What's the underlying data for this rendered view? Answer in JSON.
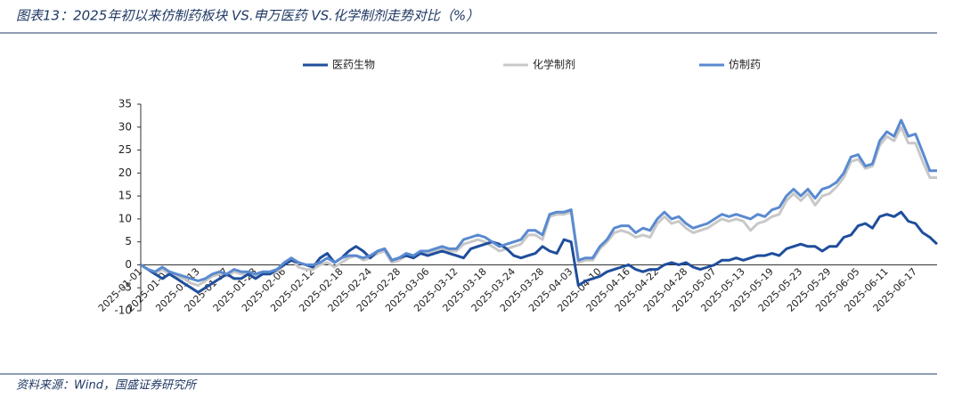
{
  "chart_data": {
    "type": "line",
    "title": "图表13：2025年初以来仿制药板块 VS.申万医药 VS.化学制剂走势对比（%）",
    "source": "资料来源：Wind，国盛证券研究所",
    "categories": [
      "2025-01-01",
      null,
      null,
      null,
      "2025-01-07",
      null,
      null,
      null,
      "2025-01-13",
      null,
      null,
      null,
      "2025-01-17",
      null,
      null,
      null,
      "2025-01-23",
      null,
      null,
      null,
      "2025-02-06",
      null,
      null,
      null,
      "2025-02-12",
      null,
      null,
      null,
      "2025-02-18",
      null,
      null,
      null,
      "2025-02-24",
      null,
      null,
      null,
      "2025-02-28",
      null,
      null,
      null,
      "2025-03-06",
      null,
      null,
      null,
      "2025-03-12",
      null,
      null,
      null,
      "2025-03-18",
      null,
      null,
      null,
      "2025-03-24",
      null,
      null,
      null,
      "2025-03-28",
      null,
      null,
      null,
      "2025-04-03",
      null,
      null,
      null,
      "2025-04-10",
      null,
      null,
      null,
      "2025-04-16",
      null,
      null,
      null,
      "2025-04-22",
      null,
      null,
      null,
      "2025-04-28",
      null,
      null,
      null,
      "2025-05-07",
      null,
      null,
      null,
      "2025-05-13",
      null,
      null,
      null,
      "2025-05-19",
      null,
      null,
      null,
      "2025-05-23",
      null,
      null,
      null,
      "2025-05-29",
      null,
      null,
      null,
      "2025-06-05",
      null,
      null,
      null,
      "2025-06-11",
      null,
      null,
      null,
      "2025-06-17",
      null,
      null,
      null
    ],
    "series": [
      {
        "name": "医药生物",
        "color": "#1f4e9c",
        "values": [
          0,
          -1,
          -2,
          -3,
          -2,
          -3,
          -4,
          -5,
          -6,
          -5,
          -4,
          -3,
          -2,
          -3,
          -3,
          -2,
          -3,
          -2,
          -2,
          -1,
          0,
          1,
          0.5,
          0,
          -0.5,
          1.5,
          2.5,
          0.5,
          1.5,
          3,
          4,
          3,
          1.5,
          3,
          3.5,
          1,
          1.5,
          2,
          1.5,
          2.5,
          2,
          2.5,
          3,
          2.5,
          2,
          1.5,
          3.5,
          4,
          4.5,
          5,
          4.5,
          3.5,
          2,
          1.5,
          2,
          2.5,
          4,
          3,
          2.5,
          5.5,
          5,
          -4.5,
          -3.5,
          -3,
          -2.5,
          -1.5,
          -1,
          -0.5,
          0,
          -1,
          -1.5,
          -1,
          -1,
          0,
          0.5,
          0,
          0.5,
          -0.5,
          -1,
          -0.5,
          0,
          1,
          1,
          1.5,
          1,
          1.5,
          2,
          2,
          2.5,
          2,
          3.5,
          4,
          4.5,
          4,
          4,
          3,
          4,
          4,
          6,
          6.5,
          8.5,
          9,
          8,
          10.5,
          11,
          10.5,
          11.5,
          9.5,
          9,
          7,
          6,
          4.5
        ]
      },
      {
        "name": "化学制剂",
        "color": "#c8c8c8",
        "values": [
          0,
          -1,
          -2,
          -1,
          -2,
          -2.5,
          -3,
          -4,
          -4.5,
          -3.5,
          -2.5,
          -2,
          -2.5,
          -1.5,
          -2,
          -2,
          -2.5,
          -2,
          -2,
          -1.5,
          0,
          1,
          -0.5,
          -1,
          -1,
          0,
          0.5,
          -0.5,
          0.5,
          1.5,
          2,
          1,
          1.5,
          2.5,
          3,
          0.5,
          1,
          2,
          1.5,
          2.5,
          2.5,
          3,
          3.5,
          3,
          3,
          4.5,
          5,
          5.5,
          5,
          4,
          3,
          3.5,
          4,
          4.5,
          6.5,
          6.5,
          5.5,
          10.5,
          11,
          11,
          11.5,
          0.5,
          1,
          1,
          3.5,
          5,
          7,
          7.5,
          7,
          6,
          6.5,
          6,
          9,
          10.5,
          9,
          9.5,
          8,
          7,
          7.5,
          8,
          9,
          10,
          9.5,
          10,
          9.5,
          7.5,
          9,
          9.5,
          10.5,
          11,
          14,
          15.5,
          14,
          15.5,
          13,
          15,
          15.5,
          17,
          19,
          22.5,
          23,
          21,
          21.5,
          26,
          28,
          27,
          30,
          26.5,
          26.5,
          22.5,
          19,
          19
        ]
      },
      {
        "name": "仿制药",
        "color": "#5a8ad0",
        "values": [
          0,
          -1,
          -1.5,
          -0.5,
          -1.5,
          -2,
          -2.5,
          -3,
          -3.5,
          -3,
          -2,
          -1.5,
          -2,
          -1,
          -1.5,
          -1.5,
          -2,
          -1.5,
          -1.5,
          -1,
          0.5,
          1.5,
          0.5,
          0,
          0,
          0.5,
          1.5,
          0.5,
          1.5,
          2,
          2,
          1.5,
          2,
          3,
          3.5,
          1,
          1.5,
          2.5,
          2,
          3,
          3,
          3.5,
          4,
          3.5,
          3.5,
          5.5,
          6,
          6.5,
          6,
          5,
          4,
          4.5,
          5,
          5.5,
          7.5,
          7.5,
          6.5,
          11,
          11.5,
          11.5,
          12,
          1,
          1.5,
          1.5,
          4,
          5.5,
          8,
          8.5,
          8.5,
          7,
          8,
          7.5,
          10,
          11.5,
          10,
          10.5,
          9,
          8,
          8.5,
          9,
          10,
          11,
          10.5,
          11,
          10.5,
          10,
          11,
          10.5,
          12,
          12.5,
          15,
          16.5,
          15,
          16.5,
          14.5,
          16.5,
          17,
          18,
          20,
          23.5,
          24,
          21.5,
          22,
          27,
          29,
          28,
          31.5,
          28,
          28.5,
          24.5,
          20.5,
          20.5
        ]
      }
    ],
    "ylim": [
      -10,
      35
    ],
    "yticks": [
      -10,
      -5,
      0,
      5,
      10,
      15,
      20,
      25,
      30,
      35
    ]
  }
}
